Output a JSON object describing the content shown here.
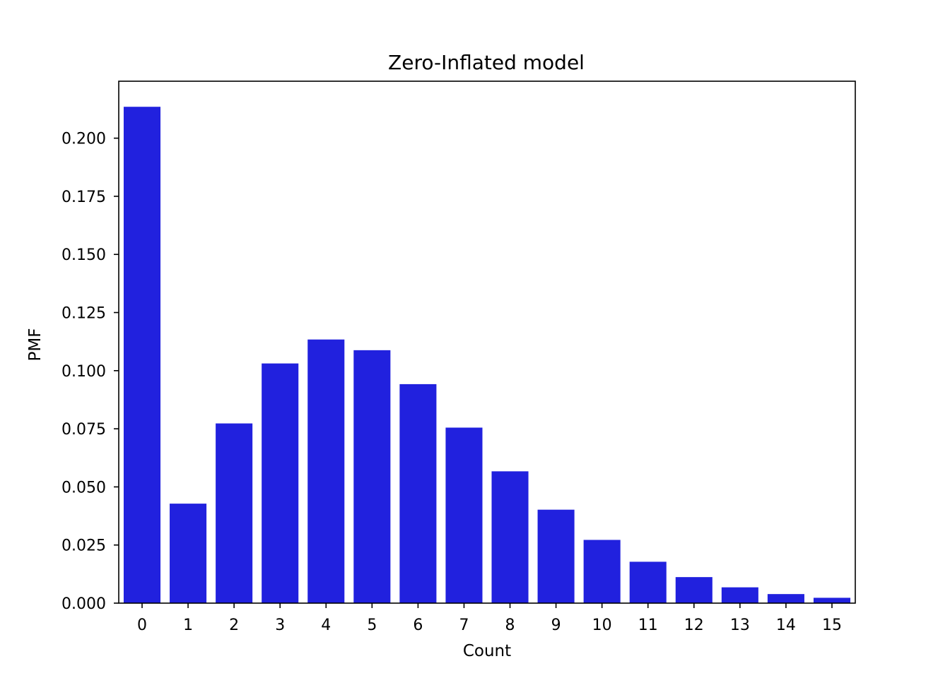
{
  "chart_data": {
    "type": "bar",
    "title": "Zero-Inflated model",
    "xlabel": "Count",
    "ylabel": "PMF",
    "categories": [
      "0",
      "1",
      "2",
      "3",
      "4",
      "5",
      "6",
      "7",
      "8",
      "9",
      "10",
      "11",
      "12",
      "13",
      "14",
      "15"
    ],
    "values": [
      0.2135,
      0.0428,
      0.0773,
      0.1031,
      0.1134,
      0.1088,
      0.0942,
      0.0755,
      0.0567,
      0.0402,
      0.0272,
      0.0178,
      0.0112,
      0.0068,
      0.0039,
      0.0023
    ],
    "ylim": [
      0,
      0.2245
    ],
    "yticks": [
      "0.000",
      "0.025",
      "0.050",
      "0.075",
      "0.100",
      "0.125",
      "0.150",
      "0.175",
      "0.200"
    ],
    "ytick_values": [
      0,
      0.025,
      0.05,
      0.075,
      0.1,
      0.125,
      0.15,
      0.175,
      0.2
    ],
    "bar_color": "#2121de",
    "grid": false,
    "legend": "none"
  }
}
